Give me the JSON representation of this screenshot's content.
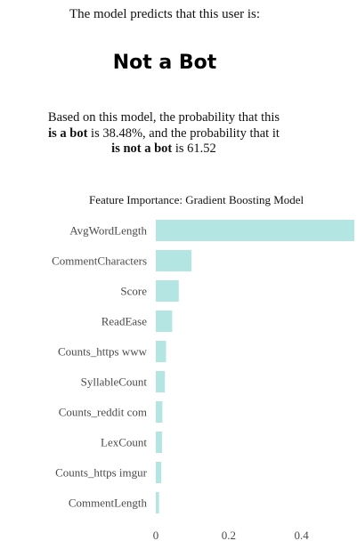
{
  "header": {
    "intro": "The model predicts that this user is:",
    "verdict": "Not a Bot"
  },
  "probability": {
    "part1": "Based on this model, the probability that this",
    "part2": "is a bot",
    "part3": "is 38.48%, and the probability that it",
    "part4": "is not a bot",
    "part5": "is 61.52"
  },
  "colors": {
    "bar": "#b3e5e3",
    "label": "#4a4a4a",
    "text": "#111111"
  },
  "chart_data": {
    "type": "bar",
    "orientation": "horizontal",
    "title": "Feature Importance: Gradient Boosting Model",
    "xlabel": "",
    "ylabel": "",
    "categories": [
      "AvgWordLength",
      "CommentCharacters",
      "Score",
      "ReadEase",
      "Counts_https www",
      "SyllableCount",
      "Counts_reddit com",
      "LexCount",
      "Counts_https imgur",
      "CommentLength"
    ],
    "values": [
      0.545,
      0.098,
      0.063,
      0.045,
      0.028,
      0.025,
      0.018,
      0.017,
      0.015,
      0.009
    ],
    "xlim": [
      0,
      0.545
    ],
    "xticks": [
      0,
      0.2,
      0.4
    ],
    "grid": false,
    "legend": "none"
  }
}
